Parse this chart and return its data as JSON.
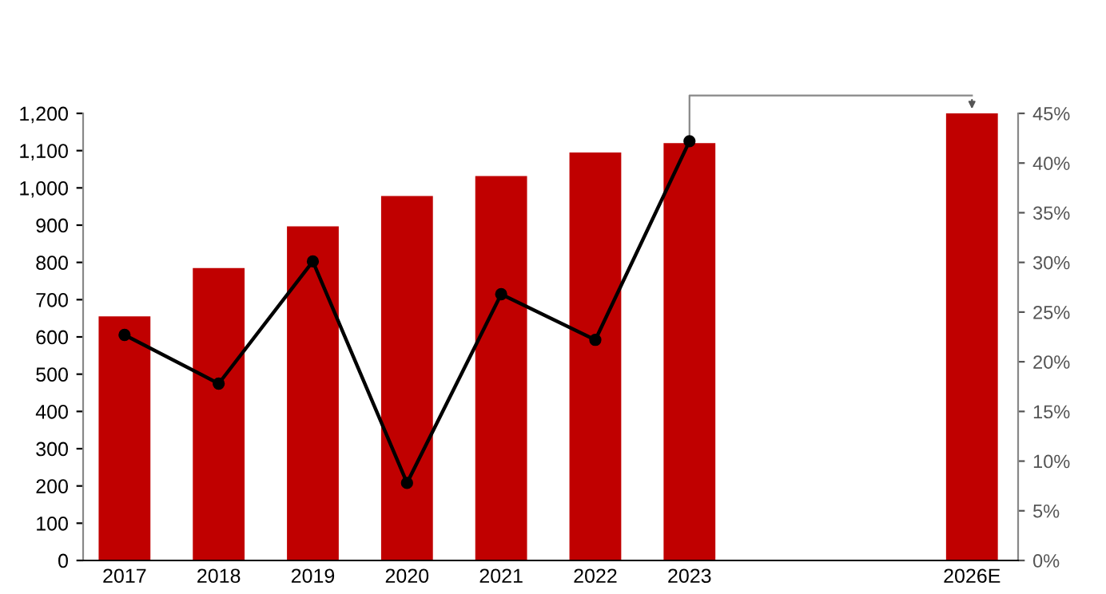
{
  "chart_data": {
    "type": "bar",
    "categories": [
      "2017",
      "2018",
      "2019",
      "2020",
      "2021",
      "2022",
      "2023",
      null,
      null,
      "2026E"
    ],
    "series": [
      {
        "color": "#c00000",
        "values": [
          655,
          785,
          897,
          978,
          1032,
          1095,
          1120,
          null,
          null,
          1200
        ]
      },
      {
        "type": "line",
        "axis": "y2",
        "color": "#000000",
        "marker": "circle",
        "line_style": "solid",
        "values": [
          22.7,
          17.8,
          30.1,
          7.8,
          26.8,
          22.2,
          42.2,
          null,
          null,
          null
        ]
      }
    ],
    "ylim": [
      0,
      1200
    ],
    "yticks": [
      0,
      100,
      200,
      300,
      400,
      500,
      600,
      700,
      800,
      900,
      {
        "value": 1000,
        "label": "1,000"
      },
      {
        "value": 1100,
        "label": "1,100"
      },
      {
        "value": 1200,
        "label": "1,200"
      }
    ],
    "y2lim": [
      0,
      45
    ],
    "y2ticks": [
      {
        "value": 0,
        "label": "0%"
      },
      {
        "value": 5,
        "label": "5%"
      },
      {
        "value": 10,
        "label": "10%"
      },
      {
        "value": 15,
        "label": "15%"
      },
      {
        "value": 20,
        "label": "20%"
      },
      {
        "value": 25,
        "label": "25%"
      },
      {
        "value": 30,
        "label": "30%"
      },
      {
        "value": 35,
        "label": "35%"
      },
      {
        "value": 40,
        "label": "40%"
      },
      {
        "value": 45,
        "label": "45%"
      }
    ],
    "grid": false,
    "legend": false
  }
}
